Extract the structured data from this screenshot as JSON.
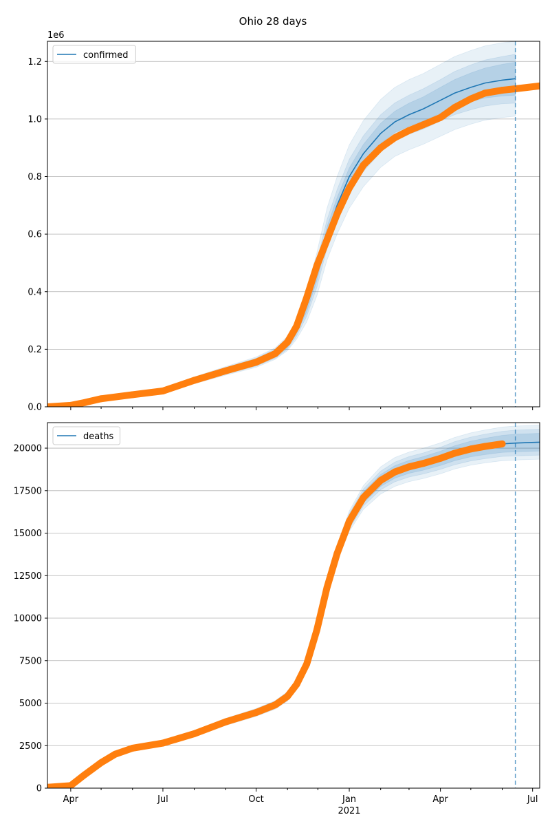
{
  "title": "Ohio 28 days",
  "colors": {
    "model": "#1f77b4",
    "observed": "#ff7f0e",
    "band": "#1f77b4",
    "grid": "#b0b0b0",
    "vline": "#1f77b4"
  },
  "chart_data": [
    {
      "type": "line",
      "legend": "confirmed",
      "legend_loc": "upper-left",
      "grid": "y",
      "offset_text": "1e6",
      "scale": 1000000,
      "ylim": [
        0,
        1270000
      ],
      "xlim": [
        "2020-03-09",
        "2021-07-08"
      ],
      "yticks": [
        0,
        200000,
        400000,
        600000,
        800000,
        1000000,
        1200000
      ],
      "ytick_labels": [
        "0.0",
        "0.2",
        "0.4",
        "0.6",
        "0.8",
        "1.0",
        "1.2"
      ],
      "forecast_date": "2021-06-14",
      "model": {
        "x": [
          "2020-03-09",
          "2020-04-01",
          "2020-05-01",
          "2020-06-01",
          "2020-07-01",
          "2020-08-01",
          "2020-09-01",
          "2020-10-01",
          "2020-10-20",
          "2020-11-01",
          "2020-11-10",
          "2020-11-20",
          "2020-11-30",
          "2020-12-10",
          "2020-12-20",
          "2021-01-01",
          "2021-01-15",
          "2021-02-01",
          "2021-02-15",
          "2021-03-01",
          "2021-03-15",
          "2021-04-01",
          "2021-04-15",
          "2021-05-01",
          "2021-05-15",
          "2021-06-01",
          "2021-06-14"
        ],
        "y": [
          0,
          5000,
          30000,
          42000,
          55000,
          92000,
          125000,
          155000,
          185000,
          220000,
          270000,
          350000,
          460000,
          600000,
          700000,
          800000,
          880000,
          950000,
          990000,
          1015000,
          1035000,
          1065000,
          1090000,
          1110000,
          1125000,
          1135000,
          1140000
        ],
        "band_inner": [
          0,
          2000,
          3000,
          4000,
          5000,
          6000,
          8000,
          10000,
          12000,
          15000,
          15000,
          20000,
          22000,
          25000,
          27000,
          30000,
          32000,
          35000,
          37000,
          40000,
          42000,
          45000,
          47000,
          50000,
          52000,
          55000,
          57000
        ],
        "band_mid": [
          0,
          3000,
          5000,
          6000,
          8000,
          10000,
          12000,
          14000,
          16000,
          20000,
          25000,
          35000,
          45000,
          50000,
          55000,
          60000,
          62000,
          65000,
          66000,
          68000,
          70000,
          72000,
          75000,
          78000,
          80000,
          82000,
          85000
        ],
        "band_outer": [
          0,
          4000,
          7000,
          8000,
          10000,
          12000,
          15000,
          18000,
          20000,
          25000,
          35000,
          55000,
          75000,
          90000,
          100000,
          110000,
          115000,
          118000,
          120000,
          122000,
          123000,
          125000,
          127000,
          128000,
          129000,
          130000,
          130000
        ]
      },
      "observed": {
        "x": [
          "2020-03-09",
          "2020-04-01",
          "2020-04-15",
          "2020-05-01",
          "2020-06-01",
          "2020-07-01",
          "2020-08-01",
          "2020-09-01",
          "2020-10-01",
          "2020-10-20",
          "2020-11-01",
          "2020-11-10",
          "2020-11-20",
          "2020-11-30",
          "2020-12-10",
          "2020-12-20",
          "2021-01-01",
          "2021-01-15",
          "2021-02-01",
          "2021-02-15",
          "2021-03-01",
          "2021-03-15",
          "2021-04-01",
          "2021-04-15",
          "2021-05-01",
          "2021-05-15",
          "2021-06-01",
          "2021-06-14",
          "2021-07-08"
        ],
        "y": [
          0,
          5000,
          15000,
          28000,
          42000,
          55000,
          92000,
          125000,
          155000,
          185000,
          225000,
          280000,
          380000,
          490000,
          580000,
          670000,
          760000,
          840000,
          900000,
          935000,
          960000,
          980000,
          1005000,
          1040000,
          1070000,
          1090000,
          1100000,
          1105000,
          1115000
        ]
      }
    },
    {
      "type": "line",
      "legend": "deaths",
      "legend_loc": "upper-left",
      "grid": "y",
      "ylim": [
        0,
        21500
      ],
      "xlim": [
        "2020-03-09",
        "2021-07-08"
      ],
      "yticks": [
        0,
        2500,
        5000,
        7500,
        10000,
        12500,
        15000,
        17500,
        20000
      ],
      "ytick_labels": [
        "0",
        "2500",
        "5000",
        "7500",
        "10000",
        "12500",
        "15000",
        "17500",
        "20000"
      ],
      "forecast_date": "2021-06-14",
      "xticks": [
        "2020-04-01",
        "2020-07-01",
        "2020-10-01",
        "2021-01-01",
        "2021-04-01",
        "2021-07-01"
      ],
      "xtick_labels": [
        "Apr",
        "Jul",
        "Oct",
        "Jan",
        "Apr",
        "Jul"
      ],
      "xtick_sublabel": "2021",
      "model": {
        "x": [
          "2020-03-09",
          "2020-04-01",
          "2020-04-15",
          "2020-05-01",
          "2020-05-15",
          "2020-06-01",
          "2020-07-01",
          "2020-08-01",
          "2020-09-01",
          "2020-10-01",
          "2020-10-20",
          "2020-11-01",
          "2020-11-10",
          "2020-11-20",
          "2020-11-30",
          "2020-12-10",
          "2020-12-20",
          "2021-01-01",
          "2021-01-15",
          "2021-02-01",
          "2021-02-15",
          "2021-03-01",
          "2021-03-15",
          "2021-04-01",
          "2021-04-15",
          "2021-05-01",
          "2021-05-15",
          "2021-06-01",
          "2021-06-14",
          "2021-07-08"
        ],
        "y": [
          50,
          150,
          800,
          1500,
          2000,
          2350,
          2650,
          3200,
          3900,
          4450,
          4900,
          5400,
          6100,
          7300,
          9300,
          11800,
          13800,
          15700,
          17100,
          18100,
          18600,
          18900,
          19100,
          19400,
          19700,
          19950,
          20100,
          20250,
          20300,
          20350
        ],
        "band_inner": [
          0,
          20,
          40,
          60,
          80,
          100,
          110,
          120,
          130,
          140,
          150,
          160,
          170,
          200,
          220,
          250,
          280,
          300,
          320,
          350,
          370,
          380,
          400,
          420,
          440,
          460,
          480,
          500,
          520,
          520
        ],
        "band_mid": [
          0,
          40,
          60,
          80,
          100,
          120,
          140,
          160,
          180,
          200,
          220,
          240,
          260,
          290,
          310,
          350,
          400,
          450,
          500,
          550,
          580,
          600,
          620,
          650,
          680,
          700,
          720,
          740,
          760,
          760
        ],
        "band_outer": [
          0,
          60,
          80,
          100,
          120,
          150,
          170,
          190,
          210,
          230,
          250,
          280,
          320,
          350,
          380,
          420,
          480,
          600,
          700,
          800,
          850,
          870,
          890,
          910,
          930,
          950,
          970,
          990,
          1000,
          1000
        ]
      },
      "observed": {
        "x": [
          "2020-03-09",
          "2020-04-01",
          "2020-04-15",
          "2020-05-01",
          "2020-05-15",
          "2020-06-01",
          "2020-07-01",
          "2020-08-01",
          "2020-09-01",
          "2020-10-01",
          "2020-10-20",
          "2020-11-01",
          "2020-11-10",
          "2020-11-20",
          "2020-11-30",
          "2020-12-10",
          "2020-12-20",
          "2021-01-01",
          "2021-01-15",
          "2021-02-01",
          "2021-02-15",
          "2021-03-01",
          "2021-03-15",
          "2021-04-01",
          "2021-04-15",
          "2021-05-01",
          "2021-05-15",
          "2021-06-01"
        ],
        "y": [
          50,
          150,
          800,
          1500,
          2000,
          2350,
          2650,
          3200,
          3900,
          4450,
          4900,
          5400,
          6100,
          7300,
          9300,
          11800,
          13800,
          15700,
          17100,
          18100,
          18600,
          18900,
          19100,
          19400,
          19700,
          19950,
          20100,
          20250
        ]
      }
    }
  ]
}
